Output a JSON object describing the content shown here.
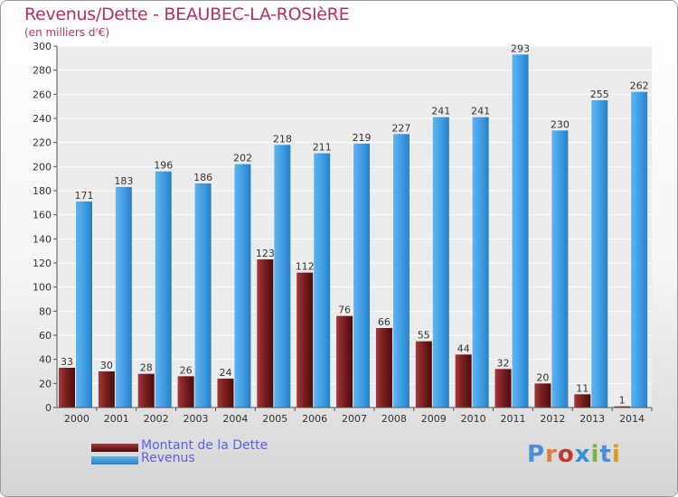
{
  "title": "Revenus/Dette - BEAUBEC-LA-ROSIèRE",
  "subtitle": "(en milliers d'€)",
  "logo": {
    "text": "Proxiti",
    "letter_colors": [
      "#4a90d9",
      "#e07b39",
      "#c0392b",
      "#3a8fd6",
      "#7cb342",
      "#4a90d9",
      "#d4a017"
    ]
  },
  "chart_data": {
    "type": "bar",
    "categories": [
      "2000",
      "2001",
      "2002",
      "2003",
      "2004",
      "2005",
      "2006",
      "2007",
      "2008",
      "2009",
      "2010",
      "2011",
      "2012",
      "2013",
      "2014"
    ],
    "series": [
      {
        "name": "Montant de la Dette",
        "color": "#7a1f1f",
        "values": [
          33,
          30,
          28,
          26,
          24,
          123,
          112,
          76,
          66,
          55,
          44,
          32,
          20,
          11,
          1
        ]
      },
      {
        "name": "Revenus",
        "color": "#3d9be3",
        "values": [
          171,
          183,
          196,
          186,
          202,
          218,
          211,
          219,
          227,
          241,
          241,
          293,
          230,
          255,
          262
        ]
      }
    ],
    "ylim": [
      0,
      300
    ],
    "yticks": [
      0,
      20,
      40,
      60,
      80,
      100,
      120,
      140,
      160,
      180,
      200,
      220,
      240,
      260,
      280,
      300
    ],
    "grid": true,
    "legend_position": "bottom-left"
  }
}
